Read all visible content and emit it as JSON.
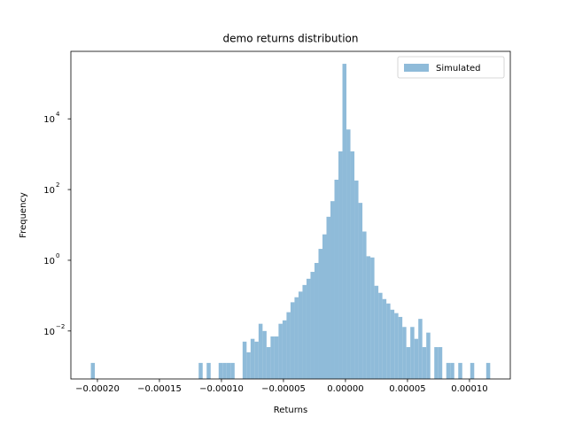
{
  "chart_data": {
    "type": "histogram",
    "title": "demo returns distribution",
    "x_label": "Returns",
    "y_label": "Frequency",
    "log_y": true,
    "legend_position": "upper right",
    "series": [
      {
        "name": "Simulated",
        "color": "#8fbbd9",
        "bins": [
          -0.0002053,
          -0.00020208,
          -0.00019886,
          -0.00019564,
          -0.00019242,
          -0.0001892,
          -0.00018598,
          -0.00018276,
          -0.00017954,
          -0.00017632,
          -0.0001731,
          -0.00016988,
          -0.00016666,
          -0.00016344,
          -0.00016022,
          -0.000157,
          -0.00015378,
          -0.00015056,
          -0.00014734,
          -0.00014412,
          -0.0001409,
          -0.00013768,
          -0.00013446,
          -0.00013124,
          -0.00012802,
          -0.0001248,
          -0.00012158,
          -0.00011836,
          -0.00011514,
          -0.00011192,
          -0.0001087,
          -0.00010548,
          -0.00010226,
          -9.904e-05,
          -9.582e-05,
          -9.26e-05,
          -8.938e-05,
          -8.616e-05,
          -8.294e-05,
          -7.972e-05,
          -7.65e-05,
          -7.328e-05,
          -7.006e-05,
          -6.684e-05,
          -6.362e-05,
          -6.04e-05,
          -5.718e-05,
          -5.396e-05,
          -5.074e-05,
          -4.752e-05,
          -4.43e-05,
          -4.108e-05,
          -3.786e-05,
          -3.464e-05,
          -3.142e-05,
          -2.82e-05,
          -2.498e-05,
          -2.176e-05,
          -1.854e-05,
          -1.532e-05,
          -1.21e-05,
          -8.88e-06,
          -5.66e-06,
          -2.44e-06,
          7.8e-07,
          4e-06,
          7.22e-06,
          1.044e-05,
          1.366e-05,
          1.688e-05,
          2.01e-05,
          2.332e-05,
          2.654e-05,
          2.976e-05,
          3.298e-05,
          3.62e-05,
          3.942e-05,
          4.264e-05,
          4.586e-05,
          4.908e-05,
          5.23e-05,
          5.552e-05,
          5.874e-05,
          6.196e-05,
          6.518e-05,
          6.84e-05,
          7.162e-05,
          7.484e-05,
          7.806e-05,
          8.128e-05,
          8.45e-05,
          8.772e-05,
          9.094e-05,
          9.416e-05,
          9.738e-05,
          0.0001006,
          0.00010382,
          0.00010704,
          0.00011026,
          0.00011348,
          0.0001167
        ],
        "values": [
          0.00125,
          0,
          0,
          0,
          0,
          0,
          0,
          0,
          0,
          0,
          0,
          0,
          0,
          0,
          0,
          0,
          0,
          0,
          0,
          0,
          0,
          0,
          0,
          0,
          0,
          0,
          0,
          0.00125,
          0,
          0.00125,
          0,
          0,
          0.00125,
          0.00125,
          0.00125,
          0.00125,
          0,
          0,
          0.005,
          0.0025,
          0.006,
          0.005,
          0.016,
          0.01,
          0.0035,
          0.007,
          0.007,
          0.016,
          0.02,
          0.034,
          0.065,
          0.09,
          0.13,
          0.2,
          0.3,
          0.47,
          0.84,
          2.1,
          5.4,
          17,
          47,
          190,
          1200,
          360000,
          5000,
          1200,
          180,
          42,
          6.5,
          1.3,
          1.2,
          0.19,
          0.12,
          0.08,
          0.06,
          0.04,
          0.032,
          0.025,
          0.013,
          0.0035,
          0.013,
          0.006,
          0.022,
          0.0035,
          0.009,
          0,
          0.0035,
          0.0035,
          0,
          0.00125,
          0.00125,
          0,
          0.00125,
          0,
          0,
          0.00125,
          0,
          0,
          0,
          0.00125
        ]
      }
    ],
    "xlim": [
      -0.0002214,
      0.0001329
    ],
    "ylim": [
      0.00044,
      810000
    ],
    "xticks": [
      {
        "value": -0.0002,
        "label": "−0.00020"
      },
      {
        "value": -0.00015,
        "label": "−0.00015"
      },
      {
        "value": -0.0001,
        "label": "−0.00010"
      },
      {
        "value": -5e-05,
        "label": "−0.00005"
      },
      {
        "value": 0,
        "label": "0.00000"
      },
      {
        "value": 5e-05,
        "label": "0.00005"
      },
      {
        "value": 0.0001,
        "label": "0.00010"
      }
    ],
    "yticks": [
      {
        "value": 0.01,
        "label": "10",
        "exponent": "−2"
      },
      {
        "value": 1,
        "label": "10",
        "exponent": "0"
      },
      {
        "value": 100,
        "label": "10",
        "exponent": "2"
      },
      {
        "value": 10000,
        "label": "10",
        "exponent": "4"
      }
    ]
  }
}
